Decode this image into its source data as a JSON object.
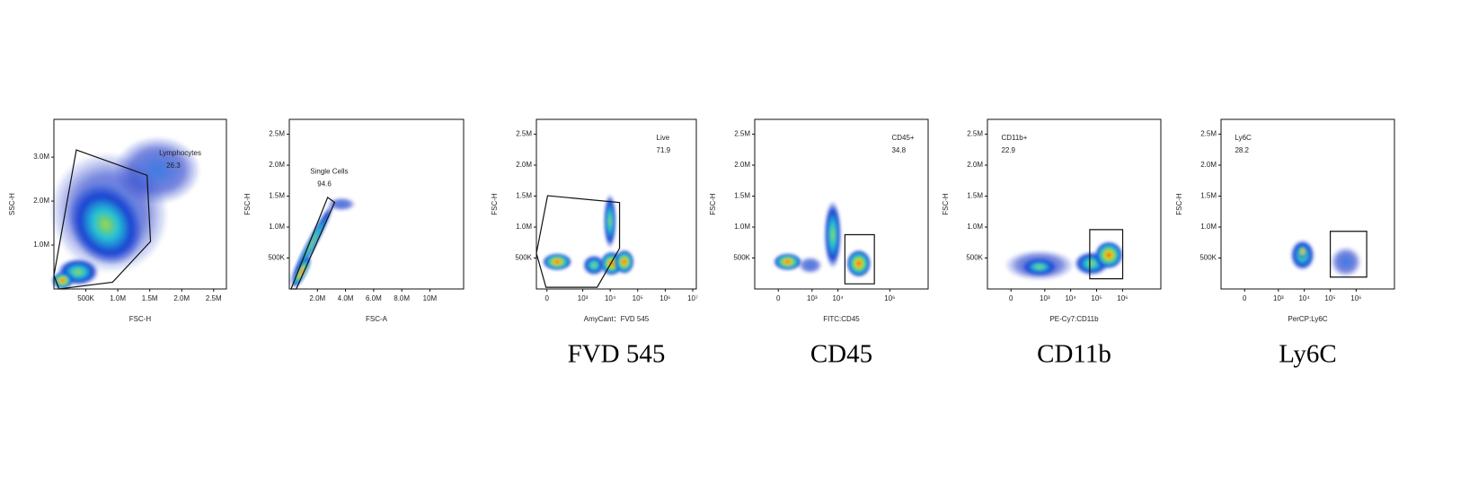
{
  "chart_data": [
    {
      "type": "scatter",
      "xlabel": "FSC-H",
      "ylabel": "SSC-H",
      "xlim": [
        0,
        2700000
      ],
      "ylim": [
        0,
        3860000
      ],
      "xticks": [
        {
          "value": 500000,
          "label": "500K"
        },
        {
          "value": 1000000,
          "label": "1.0M"
        },
        {
          "value": 1500000,
          "label": "1.5M"
        },
        {
          "value": 2000000,
          "label": "2.0M"
        },
        {
          "value": 2500000,
          "label": "2.5M"
        }
      ],
      "yticks": [
        {
          "value": 1000000,
          "label": "1.0M"
        },
        {
          "value": 2000000,
          "label": "2.0M"
        },
        {
          "value": 3000000,
          "label": "3.0M"
        }
      ],
      "gate_label": "Lymphocytes",
      "gate_value": 26.3
    },
    {
      "type": "scatter",
      "xlabel": "FSC-A",
      "ylabel": "FSC-H",
      "xlim": [
        0,
        12400000
      ],
      "ylim": [
        0,
        2740000
      ],
      "xticks": [
        {
          "value": 2000000,
          "label": "2.0M"
        },
        {
          "value": 4000000,
          "label": "4.0M"
        },
        {
          "value": 6000000,
          "label": "6.0M"
        },
        {
          "value": 8000000,
          "label": "8.0M"
        },
        {
          "value": 10000000,
          "label": "10M"
        }
      ],
      "yticks": [
        {
          "value": 500000,
          "label": "500K"
        },
        {
          "value": 1000000,
          "label": "1.0M"
        },
        {
          "value": 1500000,
          "label": "1.5M"
        },
        {
          "value": 2000000,
          "label": "2.0M"
        },
        {
          "value": 2500000,
          "label": "2.5M"
        }
      ],
      "gate_label": "Single Cells",
      "gate_value": 94.6
    },
    {
      "type": "scatter",
      "xlabel": "AmyCant：FVD 545",
      "ylabel": "FSC-H",
      "xscale": "biex",
      "xlim": [
        -100,
        13500000
      ],
      "ylim": [
        0,
        2740000
      ],
      "xticks": [
        0,
        {
          "value": 1000,
          "label": "10³"
        },
        {
          "value": 10000,
          "label": "10⁴"
        },
        {
          "value": 100000,
          "label": "10⁵"
        },
        {
          "value": 1000000,
          "label": "10⁶"
        },
        {
          "value": 10000000,
          "label": "10⁷"
        }
      ],
      "yticks": [
        {
          "value": 500000,
          "label": "500K"
        },
        {
          "value": 1000000,
          "label": "1.0M"
        },
        {
          "value": 1500000,
          "label": "1.5M"
        },
        {
          "value": 2000000,
          "label": "2.0M"
        },
        {
          "value": 2500000,
          "label": "2.5M"
        }
      ],
      "gate_label": "Live",
      "gate_value": 71.9,
      "caption": "FVD 545"
    },
    {
      "type": "scatter",
      "xlabel": "FITC:CD45",
      "ylabel": "FSC-H",
      "xscale": "biex",
      "xlim": [
        -400,
        30000000
      ],
      "ylim": [
        0,
        2740000
      ],
      "xticks": [
        0,
        {
          "value": 1000,
          "label": "10³"
        },
        {
          "value": 10000,
          "label": "10⁴"
        },
        {
          "value": 1000000,
          "label": "10⁶"
        }
      ],
      "yticks": [
        {
          "value": 500000,
          "label": "500K"
        },
        {
          "value": 1000000,
          "label": "1.0M"
        },
        {
          "value": 1500000,
          "label": "1.5M"
        },
        {
          "value": 2000000,
          "label": "2.0M"
        },
        {
          "value": 2500000,
          "label": "2.5M"
        }
      ],
      "gate_label": "CD45+",
      "gate_value": 34.8,
      "caption": "CD45"
    },
    {
      "type": "scatter",
      "xlabel": "PE-Cy7:CD11b",
      "ylabel": "FSC-H",
      "xscale": "biex",
      "xlim": [
        -400,
        30000000
      ],
      "ylim": [
        0,
        2740000
      ],
      "xticks": [
        0,
        {
          "value": 1000,
          "label": "10³"
        },
        {
          "value": 10000,
          "label": "10⁴"
        },
        {
          "value": 100000,
          "label": "10⁵"
        },
        {
          "value": 1000000,
          "label": "10⁶"
        }
      ],
      "yticks": [
        {
          "value": 500000,
          "label": "500K"
        },
        {
          "value": 1000000,
          "label": "1.0M"
        },
        {
          "value": 1500000,
          "label": "1.5M"
        },
        {
          "value": 2000000,
          "label": "2.0M"
        },
        {
          "value": 2500000,
          "label": "2.5M"
        }
      ],
      "gate_label": "CD11b+",
      "gate_value": 22.9,
      "caption": "CD11b"
    },
    {
      "type": "scatter",
      "xlabel": "PerCP:Ly6C",
      "ylabel": "FSC-H",
      "xscale": "biex",
      "xlim": [
        -400,
        30000000
      ],
      "ylim": [
        0,
        2740000
      ],
      "xticks": [
        0,
        {
          "value": 1000,
          "label": "10³"
        },
        {
          "value": 10000,
          "label": "10⁴"
        },
        {
          "value": 100000,
          "label": "10⁵"
        },
        {
          "value": 1000000,
          "label": "10⁶"
        }
      ],
      "yticks": [
        {
          "value": 500000,
          "label": "500K"
        },
        {
          "value": 1000000,
          "label": "1.0M"
        },
        {
          "value": 1500000,
          "label": "1.5M"
        },
        {
          "value": 2000000,
          "label": "2.0M"
        },
        {
          "value": 2500000,
          "label": "2.5M"
        }
      ],
      "gate_label": "Ly6C",
      "gate_value": 28.2,
      "caption": "Ly6C"
    }
  ]
}
